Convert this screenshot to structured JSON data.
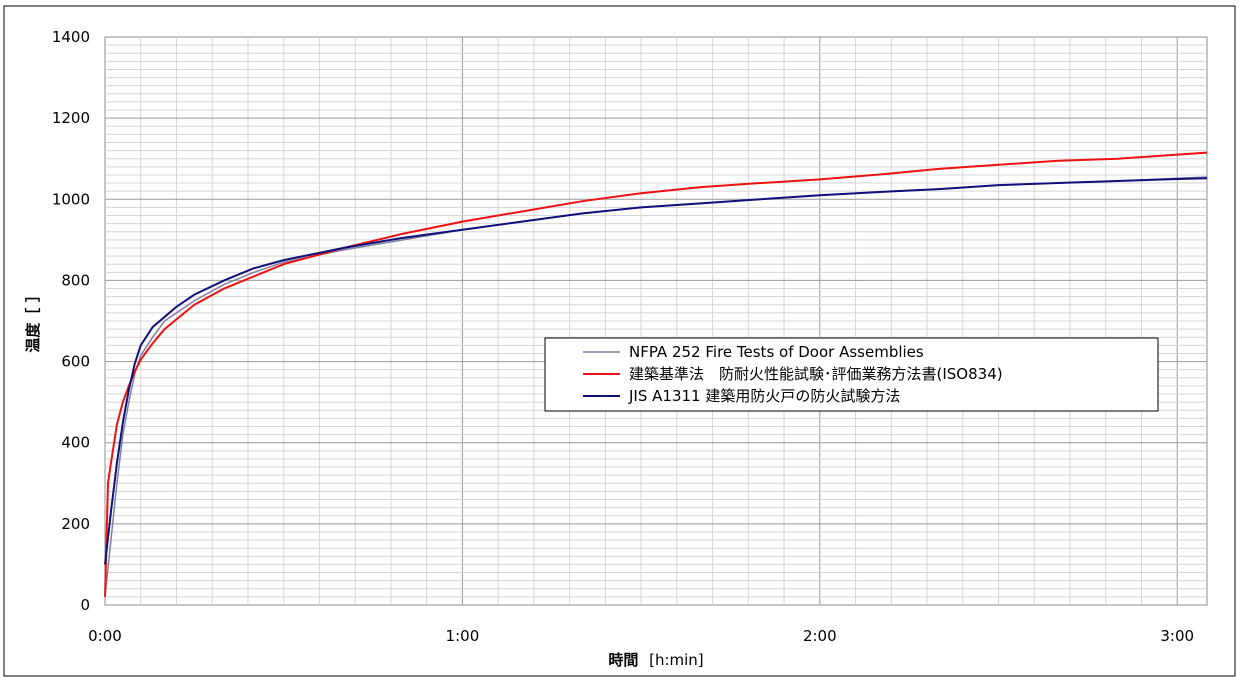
{
  "chart_data": {
    "type": "line",
    "xlabel": {
      "main": "時間",
      "unit": "[h:min]"
    },
    "ylabel": "温度［ ］",
    "ylim": [
      0,
      1400
    ],
    "yticks": [
      0,
      200,
      400,
      600,
      800,
      1000,
      1200,
      1400
    ],
    "xlim_min": [
      0,
      185
    ],
    "xticks": [
      {
        "value": 0,
        "label": "0:00"
      },
      {
        "value": 60,
        "label": "1:00"
      },
      {
        "value": 120,
        "label": "2:00"
      },
      {
        "value": 180,
        "label": "3:00"
      }
    ],
    "legend_position": "center-right",
    "series": [
      {
        "name": "NFPA 252 Fire Tests of Door Assemblies",
        "color": "#8080a0",
        "x": [
          0,
          1,
          2,
          3,
          4,
          5,
          6,
          8,
          10,
          12,
          15,
          20,
          25,
          30,
          40,
          50,
          60,
          70,
          80,
          90,
          100,
          110,
          120,
          130,
          140,
          150,
          160,
          170,
          180,
          185
        ],
        "y": [
          20,
          160,
          300,
          420,
          500,
          570,
          615,
          660,
          700,
          720,
          750,
          790,
          820,
          845,
          875,
          900,
          925,
          945,
          965,
          980,
          990,
          1000,
          1010,
          1018,
          1025,
          1035,
          1040,
          1045,
          1052,
          1055
        ]
      },
      {
        "name": "建築基準法　防耐火性能試験･評価業務方法書(ISO834)",
        "color": "#ee1111",
        "x": [
          0,
          0.5,
          1,
          2,
          3,
          4,
          5,
          6,
          8,
          10,
          15,
          20,
          25,
          30,
          40,
          50,
          60,
          70,
          80,
          90,
          100,
          110,
          120,
          130,
          140,
          150,
          160,
          170,
          180,
          185
        ],
        "y": [
          20,
          300,
          350,
          445,
          500,
          540,
          575,
          605,
          645,
          680,
          740,
          780,
          810,
          840,
          880,
          915,
          945,
          970,
          995,
          1015,
          1030,
          1040,
          1049,
          1061,
          1075,
          1085,
          1095,
          1100,
          1110,
          1115
        ]
      },
      {
        "name": "JIS A1311 建築用防火戸の防火試験方法",
        "color": "#10107a",
        "x": [
          0,
          1,
          2,
          3,
          4,
          5,
          6,
          8,
          10,
          12,
          15,
          20,
          25,
          30,
          40,
          50,
          60,
          70,
          80,
          90,
          100,
          110,
          120,
          130,
          140,
          150,
          160,
          170,
          180,
          185
        ],
        "y": [
          100,
          230,
          350,
          450,
          530,
          595,
          640,
          685,
          710,
          735,
          765,
          800,
          830,
          850,
          880,
          905,
          925,
          945,
          965,
          980,
          990,
          1000,
          1010,
          1018,
          1025,
          1035,
          1040,
          1045,
          1050,
          1052
        ]
      }
    ]
  }
}
